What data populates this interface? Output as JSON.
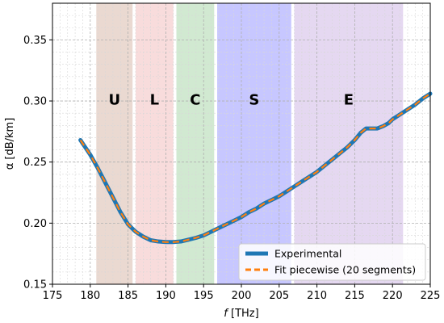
{
  "chart_data": {
    "type": "line",
    "title": "",
    "xlabel_symbol": "f",
    "xlabel_unit": " [THz]",
    "ylabel": "α [dB/km]",
    "xlim": [
      175,
      225
    ],
    "ylim": [
      0.15,
      0.38
    ],
    "xticks": [
      175,
      180,
      185,
      190,
      195,
      200,
      205,
      210,
      215,
      220,
      225
    ],
    "yticks": [
      0.15,
      0.2,
      0.25,
      0.3,
      0.35
    ],
    "grid": true,
    "minor_grid": true,
    "legend_position": "lower-right",
    "bands": [
      {
        "label": "U",
        "x0": 180.8,
        "x1": 185.6,
        "color": "#a0522d"
      },
      {
        "label": "L",
        "x0": 186.0,
        "x1": 191.0,
        "color": "#e06060"
      },
      {
        "label": "C",
        "x0": 191.4,
        "x1": 196.4,
        "color": "#2e9a2e"
      },
      {
        "label": "S",
        "x0": 196.8,
        "x1": 206.6,
        "color": "#0000ff"
      },
      {
        "label": "E",
        "x0": 207.0,
        "x1": 221.4,
        "color": "#8a4ec0"
      }
    ],
    "series": [
      {
        "name": "Experimental",
        "color": "#1f77b4",
        "style": "solid",
        "x": [
          178.7,
          180,
          181,
          182,
          183,
          184,
          185,
          186,
          187,
          188,
          189,
          190,
          191,
          192,
          193,
          194,
          195,
          196,
          197,
          198,
          199,
          200,
          201,
          202,
          203,
          204,
          205,
          206,
          207,
          208,
          209,
          210,
          211,
          212,
          213,
          214,
          215,
          215.8,
          216.5,
          217.2,
          218,
          218.8,
          219.5,
          220,
          221,
          222,
          223,
          224,
          225
        ],
        "y": [
          0.268,
          0.256,
          0.245,
          0.233,
          0.221,
          0.209,
          0.199,
          0.193,
          0.189,
          0.186,
          0.185,
          0.1845,
          0.1845,
          0.185,
          0.1865,
          0.188,
          0.19,
          0.193,
          0.196,
          0.199,
          0.202,
          0.205,
          0.209,
          0.212,
          0.216,
          0.219,
          0.222,
          0.226,
          0.23,
          0.234,
          0.238,
          0.242,
          0.247,
          0.252,
          0.257,
          0.262,
          0.268,
          0.274,
          0.2775,
          0.2775,
          0.2775,
          0.2795,
          0.282,
          0.285,
          0.289,
          0.293,
          0.297,
          0.302,
          0.306
        ]
      },
      {
        "name": "Fit piecewise (20 segments)",
        "color": "#ff7f0e",
        "style": "dashed",
        "x": [
          178.7,
          180,
          181,
          182,
          183,
          184,
          185,
          186,
          187,
          188,
          189,
          190,
          191,
          192,
          193,
          194,
          195,
          196,
          197,
          198,
          199,
          200,
          201,
          202,
          203,
          204,
          205,
          206,
          207,
          208,
          209,
          210,
          211,
          212,
          213,
          214,
          215,
          215.8,
          216.5,
          217.2,
          218,
          218.8,
          219.5,
          220,
          221,
          222,
          223,
          224,
          225
        ],
        "y": [
          0.268,
          0.256,
          0.245,
          0.233,
          0.221,
          0.209,
          0.199,
          0.193,
          0.189,
          0.186,
          0.185,
          0.1845,
          0.1845,
          0.185,
          0.1865,
          0.188,
          0.19,
          0.193,
          0.196,
          0.199,
          0.202,
          0.205,
          0.209,
          0.212,
          0.216,
          0.219,
          0.222,
          0.226,
          0.23,
          0.234,
          0.238,
          0.242,
          0.247,
          0.252,
          0.257,
          0.262,
          0.268,
          0.274,
          0.2775,
          0.2775,
          0.2775,
          0.2795,
          0.282,
          0.285,
          0.289,
          0.293,
          0.297,
          0.302,
          0.306
        ]
      }
    ]
  }
}
